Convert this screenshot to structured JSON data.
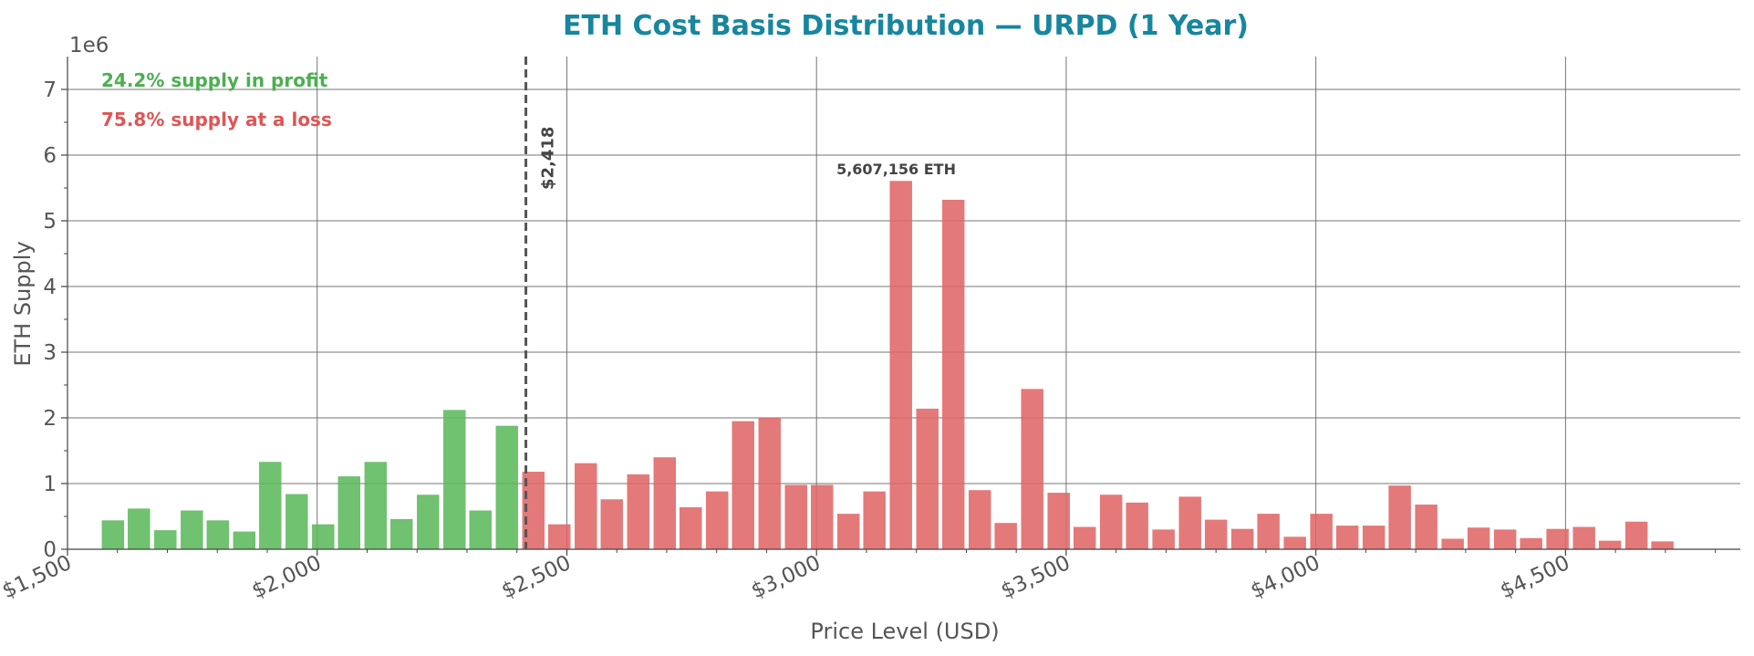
{
  "chart_data": {
    "type": "bar",
    "title": "ETH Cost Basis Distribution — URPD (1 Year)",
    "xlabel": "Price Level (USD)",
    "ylabel": "ETH Supply",
    "y_offset_label": "1e6",
    "xlim": [
      1500,
      4850
    ],
    "ylim": [
      0,
      7500000
    ],
    "xticks": [
      1500,
      2000,
      2500,
      3000,
      3500,
      4000,
      4500
    ],
    "xtick_labels": [
      "$1,500",
      "$2,000",
      "$2,500",
      "$3,000",
      "$3,500",
      "$4,000",
      "$4,500"
    ],
    "yticks": [
      0,
      1000000,
      2000000,
      3000000,
      4000000,
      5000000,
      6000000,
      7000000
    ],
    "ytick_labels": [
      "0",
      "1",
      "2",
      "3",
      "4",
      "5",
      "6",
      "7"
    ],
    "grid": true,
    "bin_width": 52.6,
    "current_price": 2418,
    "current_price_label": "$2,418",
    "peak_label": "5,607,156 ETH",
    "peak_price": 3165,
    "annotations": {
      "profit": "24.2% supply in profit",
      "loss": "75.8% supply at a loss"
    },
    "colors": {
      "profit": "#5cb85c",
      "loss": "#e06666",
      "title": "#17869e",
      "profit_text": "#4caf50",
      "loss_text": "#e05555",
      "grid": "#666666",
      "current_line": "#555555"
    },
    "series": [
      {
        "name": "",
        "x": [
          1591,
          1643,
          1696,
          1749,
          1801,
          1854,
          1906,
          1959,
          2012,
          2064,
          2117,
          2169,
          2222,
          2275,
          2327,
          2380,
          2433,
          2485,
          2538,
          2590,
          2643,
          2696,
          2748,
          2801,
          2853,
          2906,
          2959,
          3011,
          3064,
          3116,
          3169,
          3222,
          3274,
          3327,
          3379,
          3432,
          3485,
          3537,
          3590,
          3642,
          3695,
          3748,
          3800,
          3853,
          3905,
          3958,
          4011,
          4063,
          4116,
          4168,
          4221,
          4274,
          4326,
          4379,
          4431,
          4484,
          4537,
          4589,
          4642,
          4694
        ],
        "values": [
          440000,
          620000,
          290000,
          590000,
          440000,
          270000,
          1330000,
          840000,
          380000,
          1110000,
          1330000,
          460000,
          830000,
          2120000,
          590000,
          1880000,
          1180000,
          380000,
          1310000,
          760000,
          1140000,
          1400000,
          640000,
          880000,
          1950000,
          2000000,
          980000,
          980000,
          540000,
          880000,
          5607156,
          2140000,
          5320000,
          900000,
          400000,
          2440000,
          860000,
          340000,
          830000,
          710000,
          300000,
          800000,
          450000,
          310000,
          540000,
          190000,
          540000,
          360000,
          360000,
          970000,
          680000,
          160000,
          330000,
          300000,
          170000,
          310000,
          340000,
          130000,
          420000,
          120000
        ]
      }
    ]
  }
}
